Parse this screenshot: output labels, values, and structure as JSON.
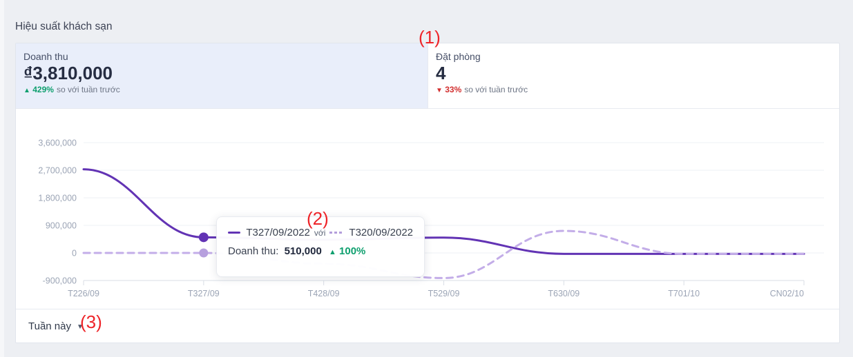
{
  "page_title": "Hiệu suất khách sạn",
  "metrics": [
    {
      "label": "Doanh thu",
      "value": "₫3,810,000",
      "delta_arrow": "▲",
      "delta": "429%",
      "delta_dir": "up",
      "suffix": "so với tuần trước",
      "selected": true
    },
    {
      "label": "Đặt phòng",
      "value": "4",
      "delta_arrow": "▼",
      "delta": "33%",
      "delta_dir": "down",
      "suffix": "so với tuần trước",
      "selected": false
    }
  ],
  "tooltip": {
    "series1_label": "T327/09/2022",
    "join_word": "với",
    "series2_label": "T320/09/2022",
    "metric_label": "Doanh thu:",
    "metric_value": "510,000",
    "delta_arrow": "▲",
    "delta": "100%"
  },
  "footer": {
    "range_label": "Tuần này",
    "caret_glyph": "▼"
  },
  "annotations": [
    {
      "text": "(1)"
    },
    {
      "text": "(2)"
    },
    {
      "text": "(3)"
    }
  ],
  "colors": {
    "series_solid": "#6233b4",
    "series_solid_marker": "#6233b4",
    "series_dashed": "#c3ade8",
    "series_dashed_marker": "#b7a0de",
    "grid_line": "#edf0f4",
    "axis_line": "#d9dee6",
    "axis_label": "#9ba4b5",
    "positive": "#0e9f6e",
    "negative": "#d22f2f",
    "selected_tile_bg": "#e9eefa",
    "annotation_red": "#ee2429"
  },
  "chart_data": {
    "type": "line",
    "unit": "VND",
    "categories": [
      "T226/09",
      "T327/09",
      "T428/09",
      "T529/09",
      "T630/09",
      "T701/10",
      "CN02/10"
    ],
    "series": [
      {
        "name": "T327/09/2022",
        "style": "solid",
        "color": "#6233b4",
        "marker_color": "#6233b4",
        "values": [
          2730000,
          510000,
          430000,
          500000,
          -30000,
          -30000,
          -30000
        ]
      },
      {
        "name": "T320/09/2022",
        "style": "dashed",
        "color": "#c3ade8",
        "marker_color": "#b7a0de",
        "values": [
          0,
          0,
          -350000,
          -820000,
          720000,
          -30000,
          -30000
        ]
      }
    ],
    "y_ticks": [
      3600000,
      2700000,
      1800000,
      900000,
      0,
      -900000
    ],
    "ylim": [
      -1150000,
      3850000
    ],
    "highlight_index": 1,
    "grid": true,
    "legend_position": "tooltip",
    "smooth": true
  }
}
